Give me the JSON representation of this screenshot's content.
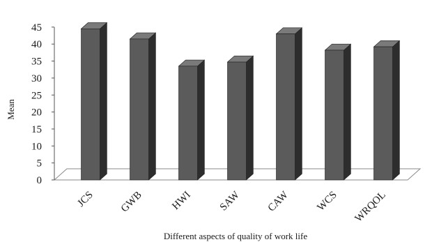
{
  "chart_data": {
    "type": "bar",
    "title": "",
    "xlabel": "Different aspects of quality of work life",
    "ylabel": "Mean",
    "categories": [
      "JCS",
      "GWB",
      "HWI",
      "SAW",
      "CAW",
      "WCS",
      "WRQOL"
    ],
    "values": [
      44.5,
      41.5,
      33.5,
      34.7,
      43.0,
      38.2,
      39.2
    ],
    "ylim": [
      0,
      45
    ],
    "yticks": [
      "0",
      "5",
      "10",
      "15",
      "20",
      "25",
      "30",
      "35",
      "40",
      "45"
    ],
    "grid": false,
    "legend": "none",
    "style": "3d-column",
    "colors": {
      "bar_front": "#5b5b5b",
      "bar_side": "#2d2d2d",
      "bar_top": "#7a7a7a",
      "floor": "#ffffff",
      "axis": "#555555"
    }
  }
}
